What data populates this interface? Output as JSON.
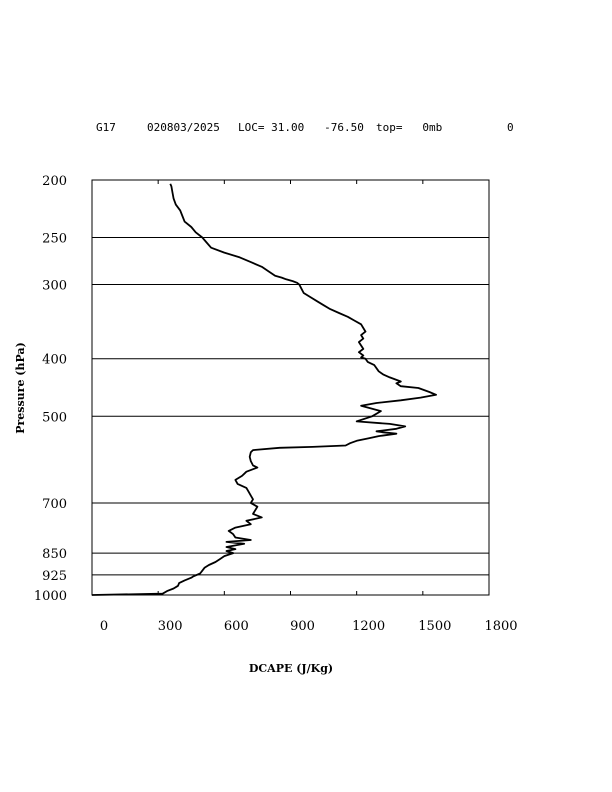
{
  "header": {
    "station": "G17",
    "datetime": "020803/2025",
    "loc": "LOC= 31.00   -76.50",
    "top": "top=   0mb",
    "extra": "0"
  },
  "chart_data": {
    "type": "line",
    "title": "",
    "xlabel": "DCAPE (J/Kg)",
    "ylabel": "Pressure (hPa)",
    "xlim": [
      0,
      1800
    ],
    "ylim": [
      1000,
      200
    ],
    "y_scale": "log",
    "x_ticks": [
      0,
      300,
      600,
      900,
      1200,
      1500,
      1800
    ],
    "x_tick_labels": [
      "0",
      "300",
      "600",
      "900",
      "1200",
      "1500",
      "1800"
    ],
    "y_ticks": [
      200,
      250,
      300,
      400,
      500,
      700,
      850,
      925,
      1000
    ],
    "y_tick_labels": [
      "200",
      "250",
      "300",
      "400",
      "500",
      "700",
      "850",
      "925",
      "1000"
    ],
    "grid_lines_pressure": [
      250,
      300,
      400,
      500,
      700,
      850,
      925
    ],
    "series": [
      {
        "x": [
          0,
          320,
          340,
          370,
          390,
          395,
          420,
          450,
          460,
          490,
          500,
          510,
          530,
          560,
          580,
          600,
          640,
          610,
          650,
          610,
          690,
          610,
          720,
          650,
          640,
          620,
          650,
          720,
          700,
          770,
          730,
          740,
          750,
          720,
          730,
          720,
          710,
          700,
          660,
          650,
          680,
          690,
          700,
          750,
          730,
          720,
          715,
          720,
          730,
          850,
          1000,
          1150,
          1170,
          1200,
          1250,
          1300,
          1380,
          1320,
          1290,
          1380,
          1420,
          1350,
          1200,
          1270,
          1310,
          1220,
          1290,
          1400,
          1490,
          1560,
          1530,
          1480,
          1400,
          1380,
          1400,
          1350,
          1320,
          1300,
          1280,
          1250,
          1240,
          1220,
          1230,
          1210,
          1230,
          1220,
          1210,
          1230,
          1220,
          1240,
          1230,
          1220,
          1190,
          1160,
          1120,
          1080,
          1050,
          1020,
          990,
          960,
          950,
          940,
          930,
          910,
          880,
          860,
          830,
          800,
          770,
          720,
          670,
          600,
          540,
          520,
          500,
          470,
          450,
          420,
          410,
          400,
          380,
          370,
          365,
          360,
          355
        ],
        "y": [
          1000,
          995,
          985,
          975,
          965,
          955,
          945,
          935,
          930,
          920,
          910,
          900,
          890,
          880,
          870,
          860,
          850,
          843,
          837,
          830,
          820,
          814,
          808,
          800,
          790,
          780,
          770,
          760,
          750,
          740,
          730,
          720,
          710,
          700,
          690,
          680,
          670,
          660,
          650,
          640,
          630,
          625,
          620,
          610,
          605,
          595,
          585,
          575,
          570,
          565,
          563,
          560,
          555,
          550,
          545,
          540,
          535,
          532,
          530,
          525,
          520,
          515,
          510,
          500,
          490,
          480,
          475,
          470,
          465,
          460,
          455,
          448,
          445,
          440,
          437,
          430,
          425,
          420,
          410,
          405,
          400,
          398,
          395,
          390,
          385,
          380,
          375,
          370,
          365,
          360,
          355,
          350,
          345,
          340,
          335,
          330,
          325,
          320,
          315,
          310,
          305,
          300,
          298,
          296,
          294,
          292,
          290,
          285,
          280,
          275,
          270,
          265,
          260,
          255,
          250,
          245,
          240,
          235,
          230,
          225,
          220,
          215,
          210,
          205,
          203
        ]
      }
    ]
  }
}
